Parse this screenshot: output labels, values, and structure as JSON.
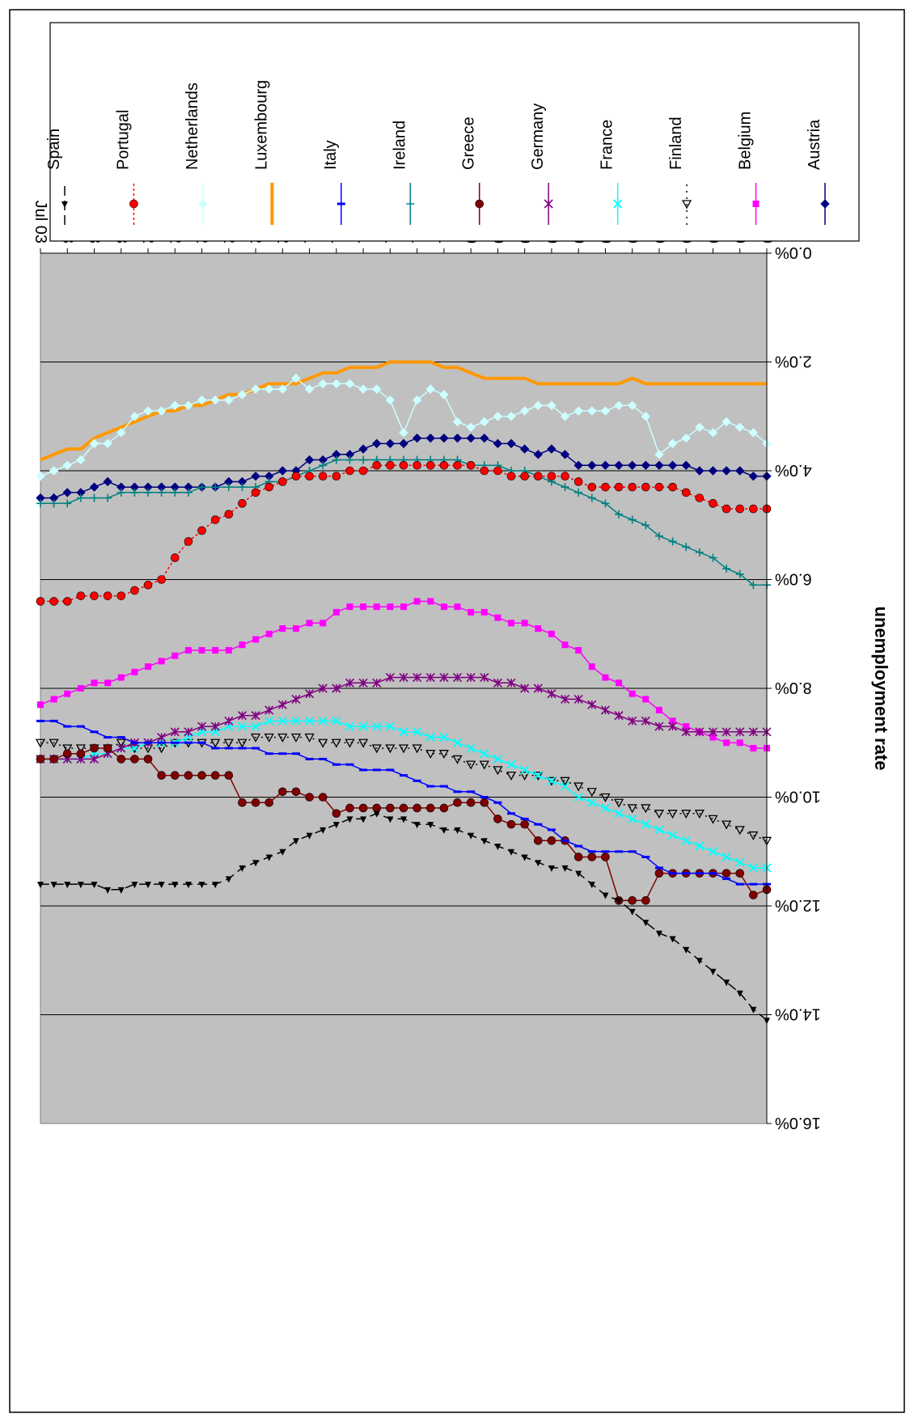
{
  "chart_data": {
    "type": "line",
    "title": "",
    "ylabel": "unemployment rate",
    "xlabel": "",
    "ylim": [
      0,
      16
    ],
    "y_ticks": [
      "0.0%",
      "2.0%",
      "4.0%",
      "6.0%",
      "8.0%",
      "10.0%",
      "12.0%",
      "14.0%",
      "16.0%"
    ],
    "categories": [
      "Jan 99",
      "Feb 99",
      "Mar 99",
      "Apr 99",
      "May 99",
      "Jun 99",
      "Jul 99",
      "Aug 99",
      "Sep 99",
      "Oct 99",
      "Nov 99",
      "Dec 99",
      "Jan 00",
      "Feb 00",
      "Mar 00",
      "Apr 00",
      "May 00",
      "Jun 00",
      "Jul 00",
      "Aug 00",
      "Sep 00",
      "Oct 00",
      "Nov 00",
      "Dec 00",
      "Jan 01",
      "Feb 01",
      "Mar 01",
      "Apr 01",
      "May 01",
      "Jun 01",
      "Jul 01",
      "Aug 01",
      "Sep 01",
      "Oct 01",
      "Nov 01",
      "Dec 01",
      "Jan 02",
      "Feb 02",
      "Mar 02",
      "Apr 02",
      "May 02",
      "Jun 02",
      "Jul 02",
      "Aug 02",
      "Sep 02",
      "Oct 02",
      "Nov 02",
      "Dec 02",
      "Jan 03",
      "Feb 03",
      "Mar 03",
      "Apr 03",
      "May 03",
      "Jun 03",
      "Jul 03"
    ],
    "x_tick_labels": [
      "Jan 99",
      "Mar 99",
      "May 99",
      "Jul 99",
      "Sep 99",
      "Nov 99",
      "Jan 00",
      "Mar 00",
      "May 00",
      "Jul 00",
      "Sep 00",
      "Nov 00",
      "Jan 01",
      "Mar 01",
      "May 01",
      "Jul 01",
      "Sep 01",
      "Nov 01",
      "Jan 02",
      "Mar 02",
      "May 02",
      "Jul 02",
      "Sep 02",
      "Nov 02",
      "Jan 03",
      "Mar 03",
      "May 03",
      "Jul 03"
    ],
    "grid": true,
    "plot_background": "#c0c0c0",
    "legend_position": "right",
    "series": [
      {
        "name": "Austria",
        "color": "#000080",
        "marker": "diamond",
        "dash": "",
        "width": 1.5,
        "values": [
          4.1,
          4.1,
          4.0,
          4.0,
          4.0,
          4.0,
          3.9,
          3.9,
          3.9,
          3.9,
          3.9,
          3.9,
          3.9,
          3.9,
          3.9,
          3.7,
          3.6,
          3.7,
          3.6,
          3.5,
          3.5,
          3.4,
          3.4,
          3.4,
          3.4,
          3.4,
          3.4,
          3.5,
          3.5,
          3.5,
          3.6,
          3.7,
          3.7,
          3.8,
          3.8,
          4.0,
          4.0,
          4.1,
          4.1,
          4.2,
          4.2,
          4.3,
          4.3,
          4.3,
          4.3,
          4.3,
          4.3,
          4.3,
          4.3,
          4.2,
          4.3,
          4.4,
          4.4,
          4.5,
          4.5
        ]
      },
      {
        "name": "Belgium",
        "color": "#ff00ff",
        "marker": "square",
        "dash": "",
        "width": 1.5,
        "values": [
          9.1,
          9.1,
          9.0,
          9.0,
          8.9,
          8.8,
          8.7,
          8.6,
          8.4,
          8.2,
          8.1,
          7.9,
          7.8,
          7.6,
          7.3,
          7.2,
          7.0,
          6.9,
          6.8,
          6.8,
          6.7,
          6.6,
          6.6,
          6.5,
          6.5,
          6.4,
          6.4,
          6.5,
          6.5,
          6.5,
          6.5,
          6.5,
          6.6,
          6.8,
          6.8,
          6.9,
          6.9,
          7.0,
          7.1,
          7.2,
          7.3,
          7.3,
          7.3,
          7.3,
          7.4,
          7.5,
          7.6,
          7.7,
          7.8,
          7.9,
          7.9,
          8.0,
          8.1,
          8.2,
          8.3
        ]
      },
      {
        "name": "Finland",
        "color": "#000000",
        "marker": "triangle-open",
        "dash": "2,6",
        "width": 1.5,
        "values": [
          10.8,
          10.7,
          10.6,
          10.5,
          10.4,
          10.3,
          10.3,
          10.3,
          10.3,
          10.2,
          10.2,
          10.1,
          10.0,
          9.9,
          9.8,
          9.7,
          9.7,
          9.6,
          9.6,
          9.6,
          9.5,
          9.4,
          9.4,
          9.3,
          9.2,
          9.2,
          9.1,
          9.1,
          9.1,
          9.1,
          9.0,
          9.0,
          9.0,
          9.0,
          8.9,
          8.9,
          8.9,
          8.9,
          8.9,
          9.0,
          9.0,
          9.0,
          9.0,
          9.0,
          9.0,
          9.1,
          9.1,
          9.1,
          9.0,
          9.1,
          9.1,
          9.1,
          9.1,
          9.0,
          9.0
        ]
      },
      {
        "name": "France",
        "color": "#00ffff",
        "marker": "x",
        "dash": "",
        "width": 1.5,
        "values": [
          11.3,
          11.3,
          11.2,
          11.1,
          11.0,
          10.9,
          10.8,
          10.7,
          10.6,
          10.5,
          10.4,
          10.3,
          10.2,
          10.1,
          10.0,
          9.8,
          9.7,
          9.6,
          9.5,
          9.4,
          9.3,
          9.2,
          9.1,
          9.0,
          8.9,
          8.9,
          8.8,
          8.8,
          8.7,
          8.7,
          8.7,
          8.7,
          8.6,
          8.6,
          8.6,
          8.6,
          8.6,
          8.6,
          8.7,
          8.7,
          8.7,
          8.8,
          8.8,
          8.9,
          9.0,
          9.0,
          9.0,
          9.1,
          9.1,
          9.2,
          9.2,
          9.3,
          9.3,
          9.3,
          9.3
        ]
      },
      {
        "name": "Germany",
        "color": "#800080",
        "marker": "star",
        "dash": "",
        "width": 1.5,
        "values": [
          8.8,
          8.8,
          8.8,
          8.8,
          8.8,
          8.8,
          8.8,
          8.7,
          8.7,
          8.6,
          8.6,
          8.5,
          8.4,
          8.3,
          8.2,
          8.2,
          8.1,
          8.0,
          8.0,
          7.9,
          7.9,
          7.8,
          7.8,
          7.8,
          7.8,
          7.8,
          7.8,
          7.8,
          7.8,
          7.9,
          7.9,
          7.9,
          8.0,
          8.0,
          8.1,
          8.2,
          8.3,
          8.4,
          8.5,
          8.5,
          8.6,
          8.7,
          8.7,
          8.8,
          8.8,
          8.9,
          9.0,
          9.0,
          9.1,
          9.2,
          9.3,
          9.3,
          9.3,
          9.3,
          9.3
        ]
      },
      {
        "name": "Greece",
        "color": "#800000",
        "marker": "circle",
        "dash": "",
        "width": 1.5,
        "values": [
          11.7,
          11.8,
          11.4,
          11.4,
          11.4,
          11.4,
          11.4,
          11.4,
          11.4,
          11.9,
          11.9,
          11.9,
          11.1,
          11.1,
          11.1,
          10.8,
          10.8,
          10.8,
          10.5,
          10.5,
          10.4,
          10.1,
          10.1,
          10.1,
          10.2,
          10.2,
          10.2,
          10.2,
          10.2,
          10.2,
          10.2,
          10.2,
          10.3,
          10.0,
          10.0,
          9.9,
          9.9,
          10.1,
          10.1,
          10.1,
          9.6,
          9.6,
          9.6,
          9.6,
          9.6,
          9.6,
          9.3,
          9.3,
          9.3,
          9.1,
          9.1,
          9.2,
          9.2,
          9.3,
          9.3
        ]
      },
      {
        "name": "Ireland",
        "color": "#008080",
        "marker": "plus",
        "dash": "",
        "width": 1.5,
        "values": [
          6.1,
          6.1,
          5.9,
          5.8,
          5.6,
          5.5,
          5.4,
          5.3,
          5.2,
          5.0,
          4.9,
          4.8,
          4.6,
          4.5,
          4.4,
          4.3,
          4.2,
          4.1,
          4.0,
          4.0,
          3.9,
          3.9,
          3.9,
          3.8,
          3.8,
          3.8,
          3.8,
          3.8,
          3.8,
          3.8,
          3.8,
          3.8,
          3.8,
          3.9,
          4.0,
          4.1,
          4.2,
          4.2,
          4.3,
          4.3,
          4.3,
          4.3,
          4.3,
          4.4,
          4.4,
          4.4,
          4.4,
          4.4,
          4.4,
          4.5,
          4.5,
          4.5,
          4.6,
          4.6,
          4.6
        ]
      },
      {
        "name": "Italy",
        "color": "#0000ff",
        "marker": "dash",
        "dash": "",
        "width": 1.5,
        "values": [
          11.6,
          11.6,
          11.6,
          11.5,
          11.4,
          11.4,
          11.4,
          11.4,
          11.3,
          11.1,
          11.0,
          11.0,
          11.0,
          11.0,
          10.9,
          10.8,
          10.6,
          10.5,
          10.4,
          10.3,
          10.1,
          10.0,
          9.9,
          9.9,
          9.8,
          9.8,
          9.7,
          9.6,
          9.5,
          9.5,
          9.5,
          9.4,
          9.4,
          9.3,
          9.3,
          9.2,
          9.2,
          9.2,
          9.1,
          9.1,
          9.1,
          9.1,
          9.0,
          9.0,
          9.0,
          9.0,
          9.0,
          9.0,
          8.9,
          8.9,
          8.8,
          8.7,
          8.7,
          8.6,
          8.6
        ]
      },
      {
        "name": "Luxembourg",
        "color": "#ff9900",
        "marker": "none",
        "dash": "",
        "width": 4,
        "values": [
          2.4,
          2.4,
          2.4,
          2.4,
          2.4,
          2.4,
          2.4,
          2.4,
          2.4,
          2.4,
          2.3,
          2.4,
          2.4,
          2.4,
          2.4,
          2.4,
          2.4,
          2.4,
          2.3,
          2.3,
          2.3,
          2.3,
          2.2,
          2.1,
          2.1,
          2.0,
          2.0,
          2.0,
          2.0,
          2.1,
          2.1,
          2.1,
          2.2,
          2.2,
          2.3,
          2.4,
          2.4,
          2.4,
          2.5,
          2.6,
          2.6,
          2.7,
          2.8,
          2.8,
          2.9,
          2.9,
          3.0,
          3.1,
          3.2,
          3.3,
          3.4,
          3.6,
          3.6,
          3.7,
          3.8
        ]
      },
      {
        "name": "Netherlands",
        "color": "#ccffff",
        "marker": "diamond",
        "dash": "",
        "width": 1.5,
        "values": [
          3.5,
          3.3,
          3.2,
          3.1,
          3.3,
          3.2,
          3.4,
          3.5,
          3.7,
          3.0,
          2.8,
          2.8,
          2.9,
          2.9,
          2.9,
          3.0,
          2.8,
          2.8,
          2.9,
          3.0,
          3.0,
          3.1,
          3.2,
          3.1,
          2.6,
          2.5,
          2.7,
          3.3,
          2.7,
          2.5,
          2.5,
          2.4,
          2.4,
          2.4,
          2.5,
          2.3,
          2.5,
          2.5,
          2.5,
          2.6,
          2.7,
          2.7,
          2.7,
          2.8,
          2.8,
          2.9,
          2.9,
          3.0,
          3.3,
          3.5,
          3.5,
          3.8,
          3.9,
          4.0,
          4.1
        ]
      },
      {
        "name": "Portugal",
        "color": "#ff0000",
        "marker": "circle",
        "dash": "3,3",
        "width": 1.5,
        "values": [
          4.7,
          4.7,
          4.7,
          4.7,
          4.6,
          4.5,
          4.4,
          4.3,
          4.3,
          4.3,
          4.3,
          4.3,
          4.3,
          4.3,
          4.2,
          4.1,
          4.1,
          4.1,
          4.1,
          4.1,
          4.0,
          4.0,
          3.9,
          3.9,
          3.9,
          3.9,
          3.9,
          3.9,
          3.9,
          3.9,
          4.0,
          4.0,
          4.1,
          4.1,
          4.1,
          4.1,
          4.2,
          4.3,
          4.4,
          4.6,
          4.8,
          4.9,
          5.1,
          5.3,
          5.6,
          6.0,
          6.1,
          6.2,
          6.3,
          6.3,
          6.3,
          6.3,
          6.4,
          6.4,
          6.4
        ]
      },
      {
        "name": "Spain",
        "color": "#000000",
        "marker": "triangle",
        "dash": "12,6",
        "width": 1.5,
        "values": [
          14.1,
          13.9,
          13.6,
          13.4,
          13.2,
          13.0,
          12.8,
          12.6,
          12.5,
          12.3,
          12.1,
          11.9,
          11.8,
          11.6,
          11.4,
          11.3,
          11.3,
          11.2,
          11.1,
          11.0,
          10.9,
          10.8,
          10.7,
          10.6,
          10.6,
          10.5,
          10.5,
          10.4,
          10.4,
          10.3,
          10.4,
          10.4,
          10.5,
          10.6,
          10.7,
          10.8,
          11.0,
          11.1,
          11.2,
          11.3,
          11.5,
          11.6,
          11.6,
          11.6,
          11.6,
          11.6,
          11.6,
          11.6,
          11.7,
          11.7,
          11.6,
          11.6,
          11.6,
          11.6,
          11.6
        ]
      }
    ]
  }
}
